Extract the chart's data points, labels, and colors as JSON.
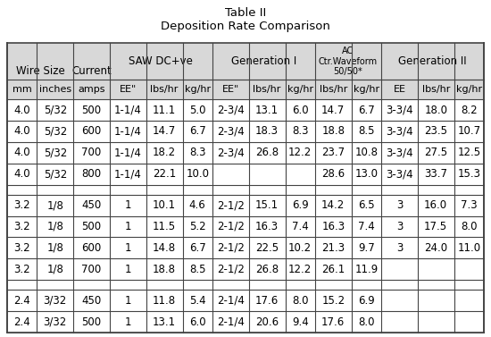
{
  "title_line1": "Table II",
  "title_line2": "Deposition Rate Comparison",
  "header_row2": [
    "mm",
    "inches",
    "amps",
    "EE\"",
    "lbs/hr",
    "kg/hr",
    "EE\"",
    "lbs/hr",
    "kg/hr",
    "lbs/hr",
    "kg/hr",
    "EE",
    "lbs/hr",
    "kg/hr"
  ],
  "data_rows": [
    [
      "4.0",
      "5/32",
      "500",
      "1-1/4",
      "11.1",
      "5.0",
      "2-3/4",
      "13.1",
      "6.0",
      "14.7",
      "6.7",
      "3-3/4",
      "18.0",
      "8.2"
    ],
    [
      "4.0",
      "5/32",
      "600",
      "1-1/4",
      "14.7",
      "6.7",
      "2-3/4",
      "18.3",
      "8.3",
      "18.8",
      "8.5",
      "3-3/4",
      "23.5",
      "10.7"
    ],
    [
      "4.0",
      "5/32",
      "700",
      "1-1/4",
      "18.2",
      "8.3",
      "2-3/4",
      "26.8",
      "12.2",
      "23.7",
      "10.8",
      "3-3/4",
      "27.5",
      "12.5"
    ],
    [
      "4.0",
      "5/32",
      "800",
      "1-1/4",
      "22.1",
      "10.0",
      "",
      "",
      "",
      "28.6",
      "13.0",
      "3-3/4",
      "33.7",
      "15.3"
    ],
    [
      "",
      "",
      "",
      "",
      "",
      "",
      "",
      "",
      "",
      "",
      "",
      "",
      "",
      ""
    ],
    [
      "3.2",
      "1/8",
      "450",
      "1",
      "10.1",
      "4.6",
      "2-1/2",
      "15.1",
      "6.9",
      "14.2",
      "6.5",
      "3",
      "16.0",
      "7.3"
    ],
    [
      "3.2",
      "1/8",
      "500",
      "1",
      "11.5",
      "5.2",
      "2-1/2",
      "16.3",
      "7.4",
      "16.3",
      "7.4",
      "3",
      "17.5",
      "8.0"
    ],
    [
      "3.2",
      "1/8",
      "600",
      "1",
      "14.8",
      "6.7",
      "2-1/2",
      "22.5",
      "10.2",
      "21.3",
      "9.7",
      "3",
      "24.0",
      "11.0"
    ],
    [
      "3.2",
      "1/8",
      "700",
      "1",
      "18.8",
      "8.5",
      "2-1/2",
      "26.8",
      "12.2",
      "26.1",
      "11.9",
      "",
      "",
      ""
    ],
    [
      "",
      "",
      "",
      "",
      "",
      "",
      "",
      "",
      "",
      "",
      "",
      "",
      "",
      ""
    ],
    [
      "2.4",
      "3/32",
      "450",
      "1",
      "11.8",
      "5.4",
      "2-1/4",
      "17.6",
      "8.0",
      "15.2",
      "6.9",
      "",
      "",
      ""
    ],
    [
      "2.4",
      "3/32",
      "500",
      "1",
      "13.1",
      "6.0",
      "2-1/4",
      "20.6",
      "9.4",
      "17.6",
      "8.0",
      "",
      "",
      ""
    ]
  ],
  "col_widths_rel": [
    4.5,
    5.5,
    5.5,
    5.5,
    5.5,
    4.5,
    5.5,
    5.5,
    4.5,
    5.5,
    4.5,
    5.5,
    5.5,
    4.5
  ],
  "bg_color": "#ffffff",
  "header_bg": "#d8d8d8",
  "grid_color": "#444444",
  "font_size_header1": 8.5,
  "font_size_header2": 8.0,
  "font_size_data": 8.5,
  "font_size_title": 9.5
}
